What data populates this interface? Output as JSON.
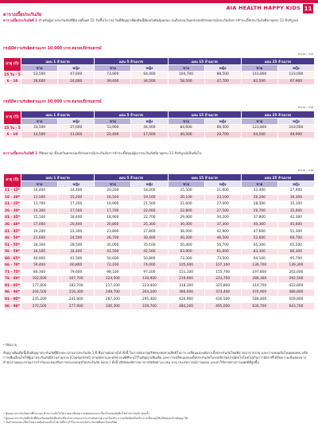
{
  "header": {
    "brand": "AIA HEALTH HAPPY KIDS",
    "page": "11"
  },
  "section": {
    "title": "ตารางเบี้ยประกันภัย",
    "para1_label": "ตารางเบี้ยประกันภัยที่ 1",
    "para1_text": " สำหรับผู้เอาประกันภัย/ที่มีอายุตั้งแต่ 15 วันขึ้นไป (ข) วันที่สัญญาเพิ่มเติมนี้มีผลบังคับคุ้มครอง จนถึงก่อนวันครบรอบปีกรมธรรม์ประกันภัยการชำระเบี้ยประกันภัยที่อายุครบ 11 ปีบริบูรณ์"
  },
  "table1": {
    "subtitle": "กรณีมีความรับผิดส่วนแรก 10,000 บาท ต่อรอบปีกรมธรรม์",
    "unit": "หน่วย : บาท",
    "age_header": "อายุ (ปี)",
    "plans": [
      "แผน 1 ล้านบาท",
      "แผน 5 ล้านบาท",
      "แผน 15 ล้านบาท",
      "แผน 25 ล้านบาท"
    ],
    "genders": [
      "ชาย",
      "หญิง"
    ],
    "rows": [
      {
        "age": "15 วัน - 5",
        "values": [
          "53,500",
          "47,600",
          "73,900",
          "64,400",
          "104,700",
          "88,500",
          "143,800",
          "123,000"
        ]
      },
      {
        "age": "6 - 10",
        "values": [
          "28,600",
          "24,600",
          "39,400",
          "34,500",
          "58,500",
          "47,700",
          "82,500",
          "67,900"
        ]
      }
    ]
  },
  "table2": {
    "subtitle": "กรณีมีความรับผิดส่วนแรก 30,000 บาท ต่อรอบปีกรมธรรม์",
    "unit": "หน่วย : บาท",
    "age_header": "อายุ (ปี)",
    "plans": [
      "แผน 1 ล้านบาท",
      "แผน 5 ล้านบาท",
      "แผน 15 ล้านบาท",
      "แผน 25 ล้านบาท"
    ],
    "genders": [
      "ชาย",
      "หญิง"
    ],
    "rows": [
      {
        "age": "15 วัน - 5",
        "values": [
          "33,500",
          "27,600",
          "53,900",
          "44,400",
          "84,600",
          "68,400",
          "123,800",
          "103,000"
        ]
      },
      {
        "age": "6 - 10",
        "values": [
          "14,500",
          "11,000",
          "22,400",
          "17,500",
          "40,500",
          "29,700",
          "64,500",
          "49,900"
        ]
      }
    ]
  },
  "section2": {
    "para2_label": "ตารางเบี้ยประกันภัยที่ 2",
    "para2_text": " (ปีต่ออายุ) ตั้งแต่วันครบรอบปีกรมธรรม์ประกันภัยการชำระเบี้ยของผู้เอาประกันภัยมีอายุครบ 11 ปีบริบูรณ์เป็นต้นไป",
    "unit": "หน่วย : บาท"
  },
  "table3": {
    "age_header": "อายุ (ปี)",
    "plans": [
      "แผน 1 ล้านบาท",
      "แผน 5 ล้านบาท",
      "แผน 15 ล้านบาท",
      "แผน 25 ล้านบาท"
    ],
    "genders": [
      "ชาย",
      "หญิง"
    ],
    "rows": [
      {
        "age": "11 - 15*",
        "values": [
          "16,400",
          "14,400",
          "20,200",
          "18,200",
          "25,500",
          "21,600",
          "33,400",
          "27,900"
        ]
      },
      {
        "age": "16 - 20*",
        "values": [
          "13,500",
          "15,200",
          "16,500",
          "19,100",
          "20,100",
          "23,100",
          "26,200",
          "30,300"
        ]
      },
      {
        "age": "21 - 25*",
        "values": [
          "13,700",
          "17,200",
          "16,900",
          "21,500",
          "21,600",
          "27,000",
          "28,300",
          "35,100"
        ]
      },
      {
        "age": "26 - 30*",
        "values": [
          "14,300",
          "17,500",
          "17,700",
          "22,000",
          "22,800",
          "27,500",
          "29,700",
          "35,600"
        ]
      },
      {
        "age": "31 - 35*",
        "values": [
          "15,100",
          "18,400",
          "18,900",
          "22,700",
          "29,400",
          "34,200",
          "37,800",
          "42,300"
        ]
      },
      {
        "age": "36 - 40*",
        "values": [
          "17,000",
          "20,400",
          "20,800",
          "25,300",
          "30,300",
          "37,300",
          "40,300",
          "45,600"
        ]
      },
      {
        "age": "41 - 45*",
        "values": [
          "19,200",
          "22,300",
          "23,800",
          "27,800",
          "36,000",
          "42,900",
          "47,600",
          "51,300"
        ]
      },
      {
        "age": "46 - 50*",
        "values": [
          "21,600",
          "24,500",
          "26,700",
          "30,400",
          "40,200",
          "46,500",
          "52,600",
          "60,700"
        ]
      },
      {
        "age": "51 - 55*",
        "values": [
          "28,300",
          "28,500",
          "35,000",
          "35,100",
          "50,400",
          "50,700",
          "65,300",
          "65,500"
        ]
      },
      {
        "age": "56 - 59*",
        "values": [
          "34,500",
          "34,400",
          "42,500",
          "42,500",
          "63,900",
          "61,600",
          "83,300",
          "80,300"
        ]
      },
      {
        "age": "60 - 65*",
        "values": [
          "40,900",
          "41,500",
          "50,600",
          "50,800",
          "72,300",
          "73,500",
          "94,100",
          "95,700"
        ]
      },
      {
        "age": "66 - 70*",
        "values": [
          "59,400",
          "60,800",
          "72,100",
          "74,000",
          "105,000",
          "107,100",
          "136,700",
          "139,300"
        ]
      },
      {
        "age": "71 - 75*",
        "values": [
          "80,300",
          "79,600",
          "98,100",
          "97,200",
          "151,100",
          "155,700",
          "197,800",
          "202,000"
        ]
      },
      {
        "age": "76 - 80*",
        "values": [
          "102,600",
          "107,700",
          "124,500",
          "130,900",
          "219,900",
          "224,700",
          "286,300",
          "292,500"
        ]
      },
      {
        "age": "81 - 85*",
        "values": [
          "177,800",
          "182,700",
          "217,100",
          "223,400",
          "318,300",
          "325,800",
          "414,700",
          "422,800"
        ]
      },
      {
        "age": "86 - 90*",
        "values": [
          "204,500",
          "216,300",
          "249,700",
          "264,200",
          "366,000",
          "374,400",
          "476,900",
          "486,800"
        ]
      },
      {
        "age": "91 - 95*",
        "values": [
          "235,200",
          "241,600",
          "287,200",
          "295,400",
          "420,900",
          "430,500",
          "548,400",
          "559,800"
        ]
      },
      {
        "age": "96 - 98*",
        "values": [
          "270,500",
          "277,900",
          "330,300",
          "339,700",
          "484,200",
          "495,000",
          "630,700",
          "643,700"
        ]
      }
    ],
    "footnote": "* ปีต่ออายุ"
  },
  "body_para": "สัญญาเพิ่มเติมนี้เป็นสัญญาประกันภัยที่มีระยะเวลาเอาประกันภัย 1 ปี ซึ่งอาจต่ออายุได้ ทั้งนี้ ในการต่ออายุบริษัทจะทบทวนสิทธิในการ เปลี่ยนแปลงอัตราเบี้ยประกันภัยโดยพิจารณาจากอายุ และการเคลมสินไหมทดแทน หรือการเพิ่มเงื่อนไขให้ผู้เอาประกันภัยมีส่วนร่วมจ่าย (Copayment) ตามอัตราและหลักเกณฑ์ที่ระบุไว้ในสัญญาเพิ่มเติม และการเปลี่ยนแปลงเบี้ยประกันภัยในรอบปีกรมธรรม์ต่อไปโดยไม่เกินกว่าอัตราที่ได้รับความเห็นชอบจากสำนักงานคณะกรรมการกำกับและส่งเสริมการประกอบธุรกิจประกันภัย (คปภ.) ทั้งนี้ บริษัทจะพิจารณาจากปัจจัยต่างๆ เช่น อายุ ประสบการณ์การเคลม และค่าใช้จ่ายทางการแพทย์ที่สูงขึ้น",
  "notes": [
    "ผู้ขอเอาประกันภัยควรศึกษาและทำความเข้าใจในรายละเอียดความคุ้มครองและเงื่อนไขก่อนตัดสินใจทำประกันภัย ทุกครั้ง",
    "ผู้ขอเอาประกันภัยมีหน้าที่ต้องเปิดเผยข้อเท็จจริงเกี่ยวกับการขอเอาประกันภัยตามความเป็นจริง การปกปิดข้อเท็จจริง อาจเป็นเหตุให้บริษัทบอกล้างสัญญาได้",
    "ข้อกำหนดและเงื่อนไขความคุ้มครองเป็นไปตามที่ระบุไว้ในกรมธรรม์ประกันภัยที่ออกโดยบริษัท"
  ]
}
